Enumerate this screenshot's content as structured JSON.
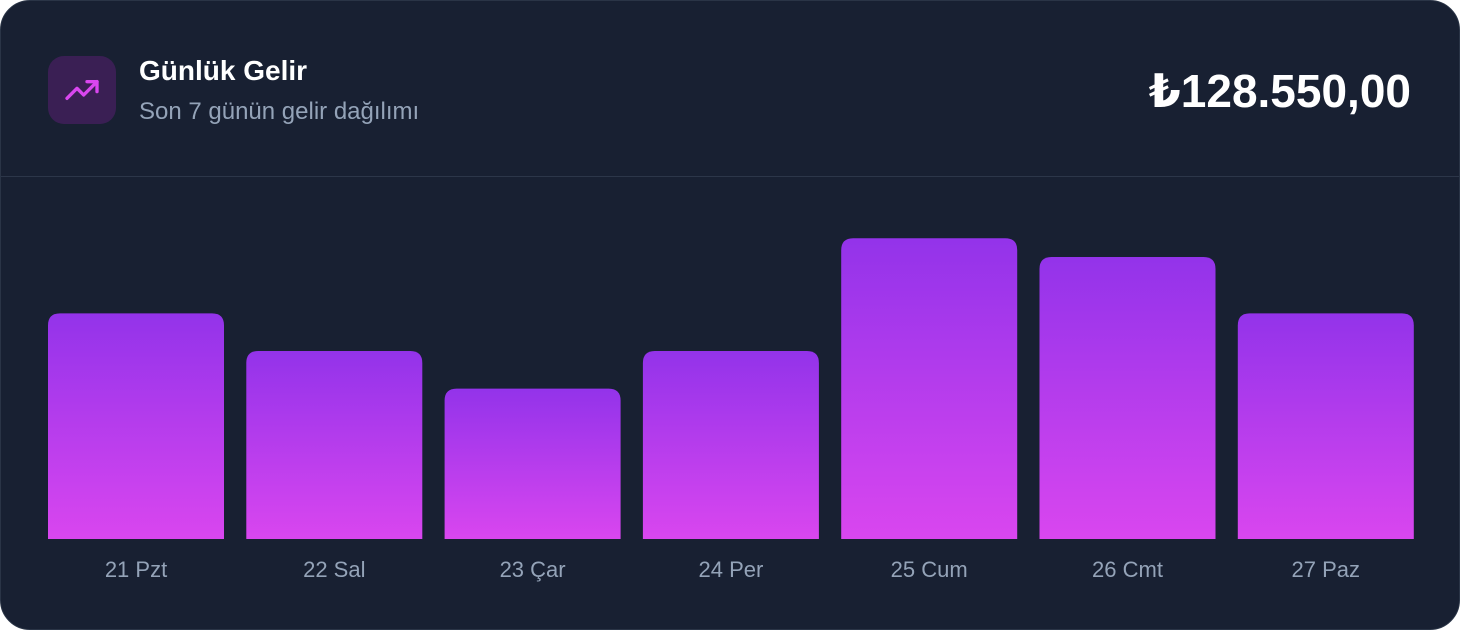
{
  "header": {
    "title": "Günlük Gelir",
    "subtitle": "Son 7 günün gelir dağılımı",
    "total": "₺128.550,00",
    "icon": "trending-up-icon"
  },
  "colors": {
    "card_bg": "#182032",
    "icon_bg": "#3a1f54",
    "icon_stroke": "#d946ef",
    "bar_top": "#9333ea",
    "bar_bottom": "#d946ef",
    "label": "#94a3b8"
  },
  "chart_data": {
    "type": "bar",
    "categories": [
      "21 Pzt",
      "22 Sal",
      "23 Çar",
      "24 Per",
      "25 Cum",
      "26 Cmt",
      "27 Paz"
    ],
    "values": [
      60,
      50,
      40,
      50,
      80,
      75,
      60
    ],
    "ylim": [
      0,
      100
    ],
    "grid": false,
    "legend": "none"
  }
}
